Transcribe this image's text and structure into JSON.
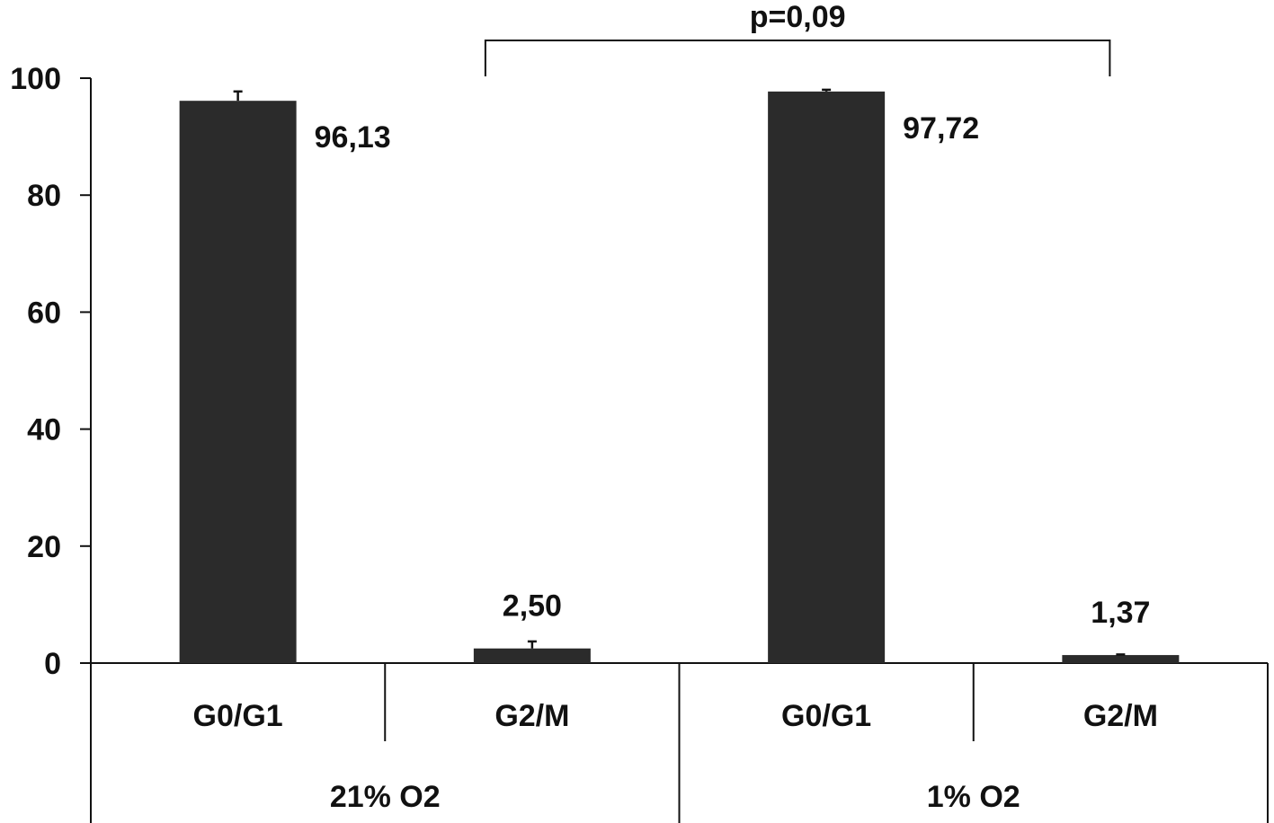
{
  "chart_data": {
    "type": "bar",
    "title": "",
    "xlabel": "",
    "ylabel": "",
    "ylim": [
      0,
      100
    ],
    "yticks": [
      0,
      20,
      40,
      60,
      80,
      100
    ],
    "grid": false,
    "legend": "none",
    "bar_color": "#2b2b2b",
    "groups": [
      {
        "label": "21% O2",
        "bars": [
          {
            "category": "G0/G1",
            "value": 96.13,
            "error": 1.6,
            "label": "96,13"
          },
          {
            "category": "G2/M",
            "value": 2.5,
            "error": 1.2,
            "label": "2,50"
          }
        ]
      },
      {
        "label": "1% O2",
        "bars": [
          {
            "category": "G0/G1",
            "value": 97.72,
            "error": 0.3,
            "label": "97,72"
          },
          {
            "category": "G2/M",
            "value": 1.37,
            "error": 0.1,
            "label": "1,37"
          }
        ]
      }
    ],
    "annotations": [
      {
        "type": "bracket",
        "from": "21% O2 / G2/M",
        "to": "1% O2 / G2/M",
        "text": "p=0,09"
      }
    ]
  }
}
